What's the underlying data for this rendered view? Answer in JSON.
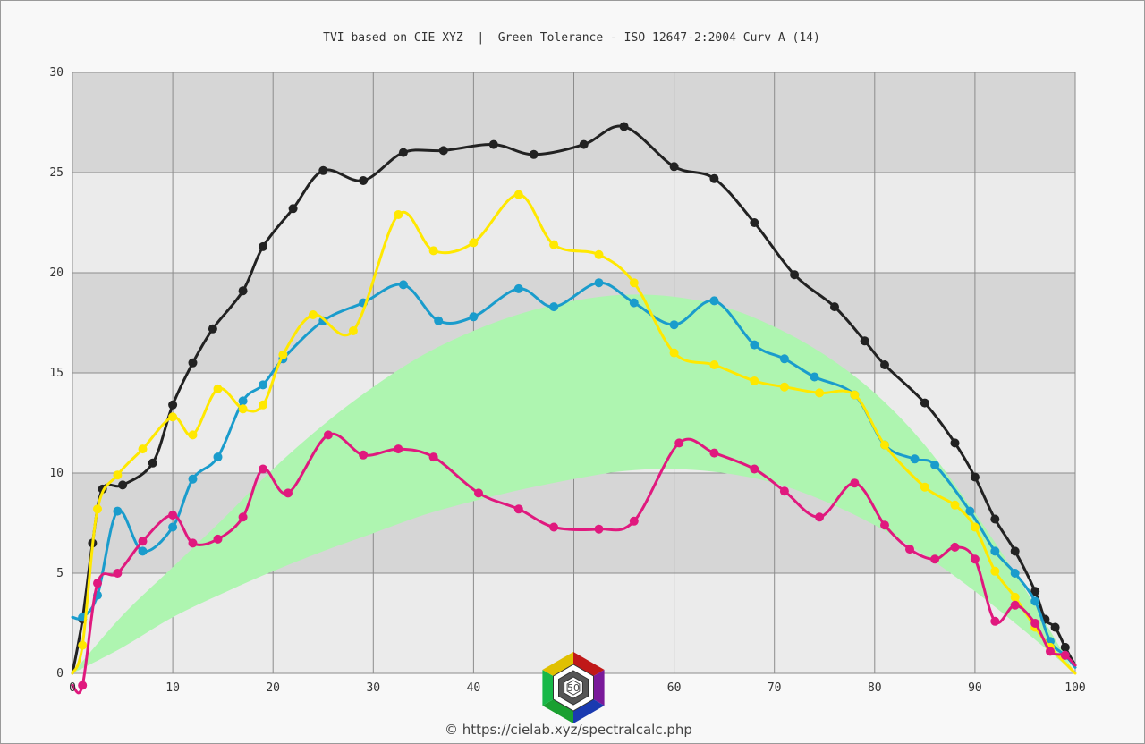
{
  "chart_data": {
    "type": "line",
    "title": "TVI based on CIE XYZ  |  Green Tolerance - ISO 12647-2:2004 Curv A (14)",
    "xlim": [
      0,
      100
    ],
    "ylim": [
      0,
      30
    ],
    "x_ticks": [
      "0",
      "10",
      "20",
      "30",
      "40",
      "50",
      "60",
      "70",
      "80",
      "90",
      "100"
    ],
    "y_ticks": [
      "0",
      "5",
      "10",
      "15",
      "20",
      "25",
      "30"
    ],
    "grid": true,
    "legend": "none",
    "colors": {
      "plot_band_dark": "#d6d6d6",
      "plot_band_light": "#ebebeb",
      "grid": "#8c8c8c",
      "tolerance": "#aef5b0"
    },
    "tolerance_band": {
      "color": "#aef5b0",
      "x": [
        0,
        5,
        10,
        15,
        20,
        25,
        30,
        35,
        40,
        45,
        50,
        55,
        60,
        65,
        70,
        75,
        80,
        85,
        90,
        95,
        100
      ],
      "lower": [
        0,
        1.3,
        2.8,
        4.0,
        5.1,
        6.1,
        7.0,
        7.9,
        8.6,
        9.2,
        9.7,
        10.1,
        10.2,
        10.0,
        9.5,
        8.6,
        7.4,
        5.9,
        4.1,
        2.1,
        0
      ],
      "upper": [
        0,
        2.9,
        5.3,
        7.7,
        10.2,
        12.4,
        14.3,
        15.9,
        17.1,
        18.0,
        18.6,
        18.9,
        18.8,
        18.3,
        17.3,
        15.9,
        14.0,
        11.4,
        8.0,
        4.2,
        0
      ]
    },
    "series": [
      {
        "color": "#222222",
        "x": [
          0,
          1,
          2,
          3,
          5,
          8,
          10,
          12,
          14,
          17,
          19,
          22,
          25,
          29,
          33,
          37,
          42,
          46,
          51,
          55,
          60,
          64,
          68,
          72,
          76,
          79,
          81,
          85,
          88,
          90,
          92,
          94,
          96,
          97,
          98,
          99,
          100
        ],
        "y": [
          0,
          2.7,
          6.5,
          9.2,
          9.4,
          10.5,
          13.4,
          15.5,
          17.2,
          19.1,
          21.3,
          23.2,
          25.1,
          24.6,
          26.0,
          26.1,
          26.4,
          25.9,
          26.4,
          27.3,
          25.3,
          24.7,
          22.5,
          19.9,
          18.3,
          16.6,
          15.4,
          13.5,
          11.5,
          9.8,
          7.7,
          6.1,
          4.1,
          2.7,
          2.3,
          1.3,
          0.4
        ]
      },
      {
        "color": "#1a9ccc",
        "x": [
          0,
          1,
          2.5,
          4.5,
          7,
          10,
          12,
          14.5,
          17,
          19,
          21,
          25,
          29,
          33,
          36.5,
          40,
          44.5,
          48,
          52.5,
          56,
          60,
          64,
          68,
          71,
          74,
          78,
          81,
          84,
          86,
          89.5,
          92,
          94,
          96,
          97.5,
          99,
          100
        ],
        "y": [
          2.8,
          2.8,
          3.9,
          8.1,
          6.1,
          7.3,
          9.7,
          10.8,
          13.6,
          14.4,
          15.7,
          17.6,
          18.5,
          19.4,
          17.6,
          17.8,
          19.2,
          18.3,
          19.5,
          18.5,
          17.4,
          18.6,
          16.4,
          15.7,
          14.8,
          13.9,
          11.4,
          10.7,
          10.4,
          8.1,
          6.1,
          5.0,
          3.6,
          1.6,
          0.9,
          0.3
        ]
      },
      {
        "color": "#ffe800",
        "x": [
          0,
          1,
          2.5,
          4.5,
          7,
          10,
          12,
          14.5,
          17,
          19,
          21,
          24,
          28,
          32.5,
          36,
          40,
          44.5,
          48,
          52.5,
          56,
          60,
          64,
          68,
          71,
          74.5,
          78,
          81,
          85,
          88,
          90,
          92,
          94,
          96,
          97.5,
          100
        ],
        "y": [
          0,
          1.4,
          8.2,
          9.9,
          11.2,
          12.8,
          11.9,
          14.2,
          13.2,
          13.4,
          15.9,
          17.9,
          17.1,
          22.9,
          21.1,
          21.5,
          23.9,
          21.4,
          20.9,
          19.5,
          16.0,
          15.4,
          14.6,
          14.3,
          14.0,
          13.9,
          11.4,
          9.3,
          8.4,
          7.3,
          5.1,
          3.8,
          2.3,
          1.3,
          0
        ]
      },
      {
        "color": "#e0197e",
        "x": [
          0,
          1,
          2.5,
          4.5,
          7,
          10,
          12,
          14.5,
          17,
          19,
          21.5,
          25.5,
          29,
          32.5,
          36,
          40.5,
          44.5,
          48,
          52.5,
          56,
          60.5,
          64,
          68,
          71,
          74.5,
          78,
          81,
          83.5,
          86,
          88,
          90,
          92,
          94,
          96,
          97.5,
          99,
          100
        ],
        "y": [
          -0.6,
          -0.6,
          4.5,
          5.0,
          6.6,
          7.9,
          6.5,
          6.7,
          7.8,
          10.2,
          9.0,
          11.9,
          10.9,
          11.2,
          10.8,
          9.0,
          8.2,
          7.3,
          7.2,
          7.6,
          11.5,
          11.0,
          10.2,
          9.1,
          7.8,
          9.5,
          7.4,
          6.2,
          5.7,
          6.3,
          5.7,
          2.6,
          3.4,
          2.5,
          1.1,
          0.9,
          0.4
        ]
      }
    ],
    "credit": "© https://cielab.xyz/spectralcalc.php",
    "logo_text": "50"
  }
}
